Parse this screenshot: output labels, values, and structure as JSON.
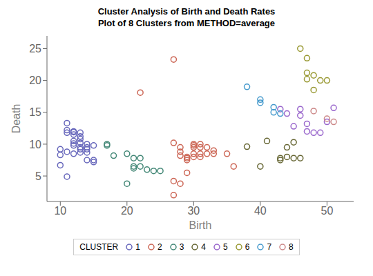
{
  "chart_data": {
    "type": "scatter",
    "title": "Cluster Analysis of Birth and Death Rates",
    "subtitle": "Plot of 8 Clusters from METHOD=average",
    "x_label": "Birth",
    "y_label": "Death",
    "xlim": [
      8,
      54
    ],
    "ylim": [
      1,
      27
    ],
    "xticks": [
      10,
      20,
      30,
      40,
      50
    ],
    "yticks": [
      5,
      10,
      15,
      20,
      25
    ],
    "grid": false,
    "legend": "bottom",
    "legend_title": "CLUSTER",
    "marker": "open_circle",
    "series": [
      {
        "name": "1",
        "color": "#6666bb",
        "x": [
          10,
          10,
          11,
          11,
          11,
          12,
          12,
          12,
          12,
          12,
          12,
          13,
          13,
          13,
          13,
          13,
          13,
          14,
          14,
          14,
          14,
          15,
          15,
          15,
          10,
          11,
          12,
          13,
          14,
          11
        ],
        "values": [
          9.2,
          8.3,
          13.3,
          11.8,
          12.2,
          11.9,
          12.0,
          11.5,
          10.5,
          10.1,
          9.8,
          11.8,
          11.2,
          10.8,
          10.2,
          9.5,
          9.2,
          10.0,
          9.5,
          9.2,
          8.7,
          9.8,
          7.5,
          7.2,
          6.7,
          8.8,
          8.5,
          8.7,
          7.5,
          4.9
        ]
      },
      {
        "name": "2",
        "color": "#cc6655",
        "x": [
          27,
          22,
          27,
          28,
          28,
          28,
          29,
          29,
          29,
          30,
          30,
          30,
          30,
          30,
          31,
          31,
          31,
          31,
          32,
          32,
          33,
          33,
          35,
          36,
          27,
          28,
          27,
          29
        ],
        "values": [
          23.3,
          18.1,
          10.2,
          9.5,
          8.8,
          8.2,
          8.0,
          7.8,
          7.5,
          10.0,
          9.8,
          9.5,
          8.5,
          8.0,
          10.0,
          9.5,
          8.5,
          8.0,
          9.5,
          8.5,
          9.0,
          8.5,
          8.5,
          6.5,
          4.2,
          3.8,
          2.0,
          5.5
        ]
      },
      {
        "name": "3",
        "color": "#448877",
        "x": [
          17,
          17,
          18,
          20,
          21,
          21,
          21,
          22,
          22,
          23,
          24,
          25,
          20
        ],
        "values": [
          9.8,
          10.0,
          8.2,
          8.5,
          7.8,
          6.5,
          6.2,
          7.8,
          6.5,
          6.0,
          5.8,
          5.8,
          3.8
        ]
      },
      {
        "name": "4",
        "color": "#666633",
        "x": [
          38,
          40,
          41,
          43,
          43,
          44,
          44,
          45,
          45,
          46
        ],
        "values": [
          9.6,
          6.5,
          10.5,
          7.8,
          7.5,
          9.5,
          8.0,
          10.3,
          7.8,
          7.8
        ]
      },
      {
        "name": "5",
        "color": "#9966cc",
        "x": [
          43,
          44,
          45,
          46,
          46,
          47,
          47,
          48,
          49,
          50,
          51
        ],
        "values": [
          15.5,
          14.8,
          12.8,
          15.5,
          14.5,
          13.2,
          12.0,
          11.8,
          11.8,
          13.5,
          15.7
        ]
      },
      {
        "name": "6",
        "color": "#999933",
        "x": [
          46,
          47,
          47,
          47,
          48,
          48,
          49,
          50
        ],
        "values": [
          25.0,
          23.5,
          21.2,
          20.2,
          20.8,
          18.5,
          20.0,
          20.0
        ]
      },
      {
        "name": "7",
        "color": "#4499cc",
        "x": [
          38,
          40,
          40,
          42,
          42,
          43
        ],
        "values": [
          19.0,
          17.0,
          16.5,
          15.8,
          15.0,
          14.8
        ]
      },
      {
        "name": "8",
        "color": "#cc8888",
        "x": [
          48,
          50,
          51
        ],
        "values": [
          15.2,
          14.0,
          13.5
        ]
      }
    ]
  }
}
